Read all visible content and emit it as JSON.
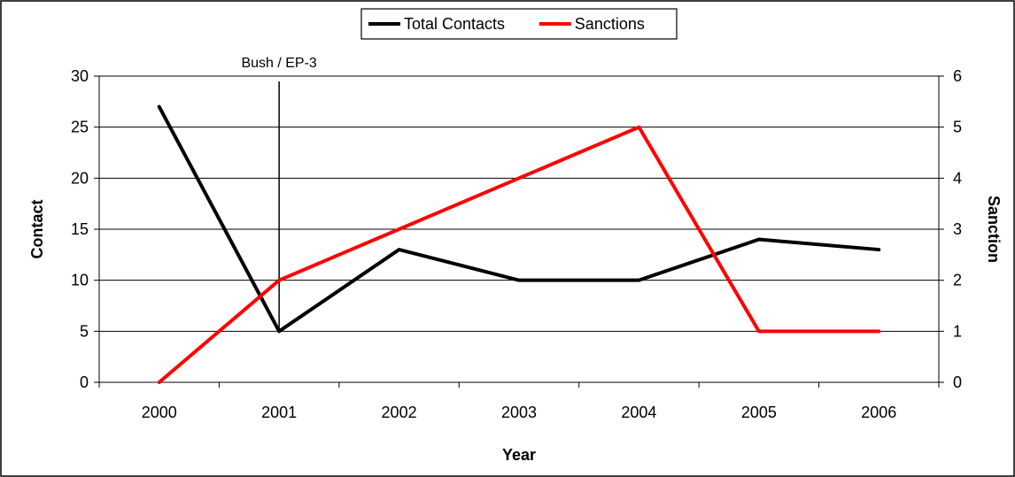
{
  "chart_data": {
    "type": "line",
    "title": "",
    "categories": [
      "2000",
      "2001",
      "2002",
      "2003",
      "2004",
      "2005",
      "2006"
    ],
    "xlabel": "Year",
    "ylabel_left": "Contact",
    "ylabel_right": "Sanction",
    "ylim_left": [
      0,
      30
    ],
    "yticks_left": [
      0,
      5,
      10,
      15,
      20,
      25,
      30
    ],
    "ylim_right": [
      0,
      6
    ],
    "yticks_right": [
      0,
      1,
      2,
      3,
      4,
      5,
      6
    ],
    "grid": true,
    "legend_position": "top-center",
    "series": [
      {
        "name": "Total Contacts",
        "axis": "left",
        "color": "#000000",
        "values": [
          27,
          5,
          13,
          10,
          10,
          14,
          13
        ]
      },
      {
        "name": "Sanctions",
        "axis": "right",
        "color": "#ff0000",
        "values": [
          0,
          2,
          3,
          4,
          5,
          1,
          1
        ]
      }
    ],
    "annotations": [
      {
        "text": "Bush / EP-3",
        "x": "2001",
        "type": "vertical-line"
      }
    ]
  }
}
